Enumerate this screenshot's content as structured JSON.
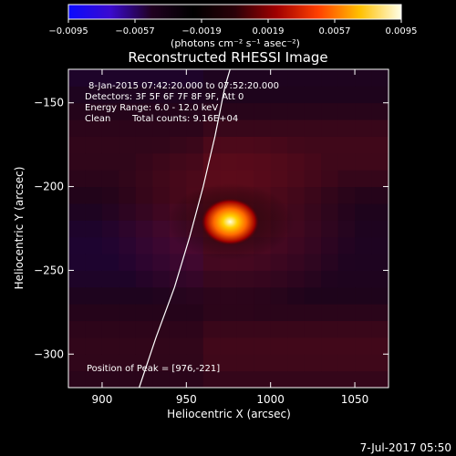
{
  "colorbar": {
    "ticks": [
      {
        "value": -0.0095,
        "label": "−0.0095"
      },
      {
        "value": -0.0057,
        "label": "−0.0057"
      },
      {
        "value": -0.0019,
        "label": "−0.0019"
      },
      {
        "value": 0.0019,
        "label": "0.0019"
      },
      {
        "value": 0.0057,
        "label": "0.0057"
      },
      {
        "value": 0.0095,
        "label": "0.0095"
      }
    ],
    "range": [
      -0.0095,
      0.0095
    ],
    "unit_label": "(photons cm⁻² s⁻¹ asec⁻²)",
    "colors": [
      "#0a0aff",
      "#3a0ad0",
      "#200020",
      "#000000",
      "#2a0008",
      "#a00000",
      "#ff4000",
      "#ffc000",
      "#ffffe8"
    ]
  },
  "chart_data": {
    "type": "heatmap",
    "title": "Reconstructed RHESSI Image",
    "xlabel": "Heliocentric X (arcsec)",
    "ylabel": "Heliocentric Y (arcsec)",
    "xlim": [
      880,
      1070
    ],
    "ylim": [
      -320,
      -130
    ],
    "xticks": [
      900,
      950,
      1000,
      1050
    ],
    "yticks": [
      -150,
      -200,
      -250,
      -300
    ],
    "peak": {
      "x": 976,
      "y": -221,
      "value": 0.0095
    },
    "limb_curve": [
      [
        922,
        -320
      ],
      [
        932,
        -290
      ],
      [
        943,
        -260
      ],
      [
        952,
        -230
      ],
      [
        960,
        -200
      ],
      [
        967,
        -170
      ],
      [
        973,
        -140
      ],
      [
        976,
        -130
      ]
    ],
    "annotations": {
      "time_range": "8-Jan-2015 07:42:20.000 to 07:52:20.000",
      "detectors": "Detectors: 3F 5F 6F 7F 8F 9F, Att 0",
      "energy": "Energy Range: 6.0 - 12.0 keV",
      "method": "Clean",
      "counts": "Total counts: 9.16E+04",
      "peak_label": "Position of Peak = [976,-221]"
    }
  },
  "footer": {
    "date": "7-Jul-2017 05:50"
  }
}
